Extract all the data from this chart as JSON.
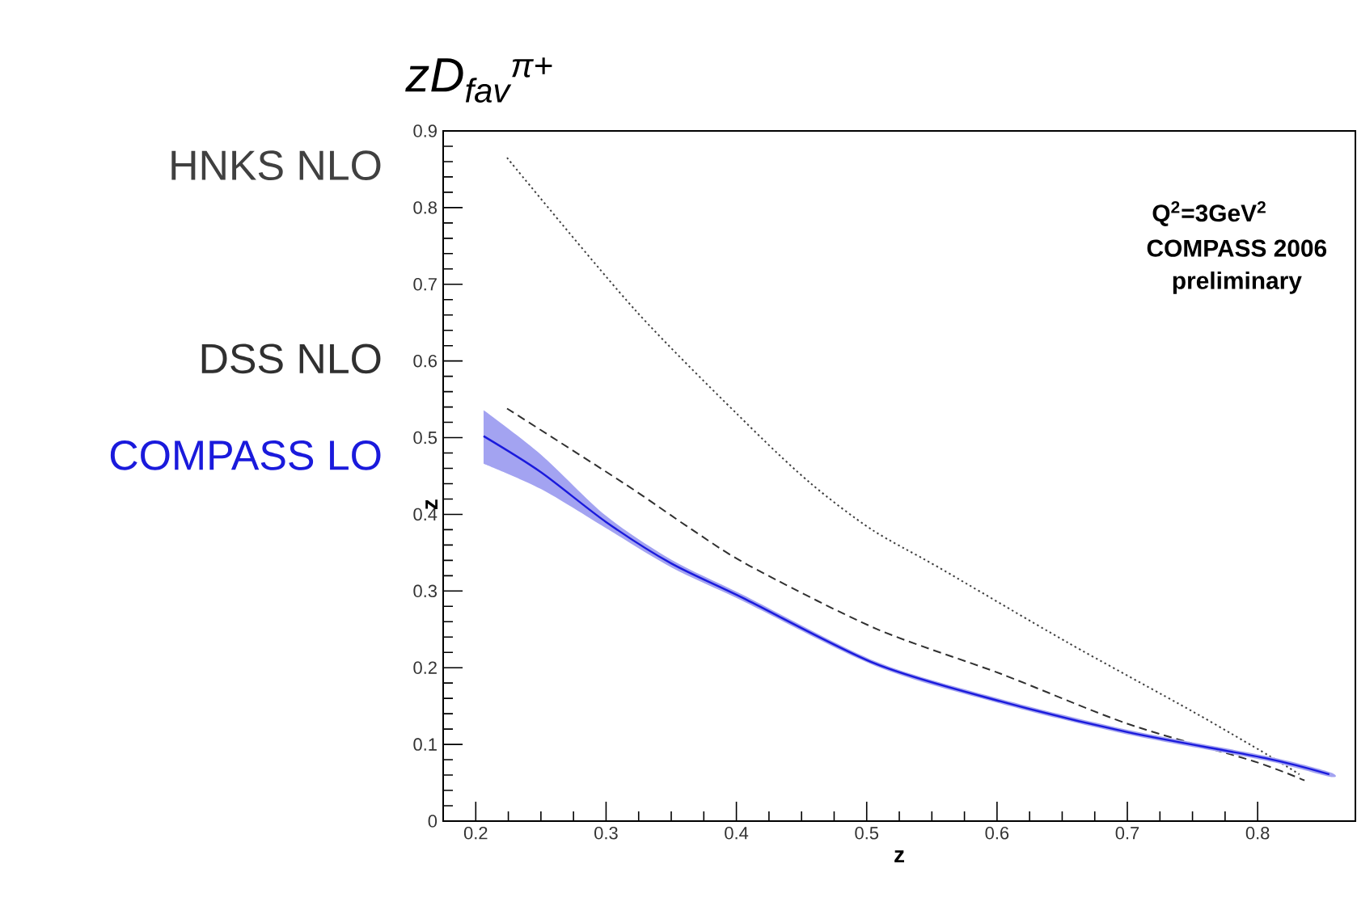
{
  "chart_data": {
    "type": "line",
    "title": "zD$_{fav}$$^{π+}$",
    "xlabel": "z",
    "ylabel": "z",
    "xlim": [
      0.175,
      0.875
    ],
    "ylim": [
      0,
      0.9
    ],
    "xticks": [
      0.2,
      0.3,
      0.4,
      0.5,
      0.6,
      0.7,
      0.8
    ],
    "yticks": [
      0,
      0.1,
      0.2,
      0.3,
      0.4,
      0.5,
      0.6,
      0.7,
      0.8,
      0.9
    ],
    "legend": false,
    "marker": "none",
    "grid": false,
    "annotations": [
      "Q$^{2}$=3GeV$^{2}$",
      "COMPASS 2006",
      "preliminary"
    ],
    "series": [
      {
        "name": "HNKS NLO",
        "color": "#404040",
        "line_style": "dotted",
        "x": [
          0.224,
          0.322,
          0.41,
          0.458,
          0.504,
          0.555,
          0.653,
          0.75,
          0.808,
          0.832
        ],
        "values": [
          0.865,
          0.667,
          0.515,
          0.439,
          0.38,
          0.331,
          0.234,
          0.143,
          0.086,
          0.061
        ]
      },
      {
        "name": "DSS NLO",
        "color": "#303030",
        "line_style": "dashed",
        "x": [
          0.224,
          0.315,
          0.366,
          0.41,
          0.507,
          0.603,
          0.7,
          0.797,
          0.836
        ],
        "values": [
          0.538,
          0.439,
          0.38,
          0.333,
          0.251,
          0.192,
          0.127,
          0.078,
          0.053
        ]
      },
      {
        "name": "COMPASS LO",
        "color": "#1a1adc",
        "line_style": "solid",
        "x": [
          0.206,
          0.25,
          0.3,
          0.35,
          0.405,
          0.507,
          0.603,
          0.7,
          0.806,
          0.855
        ],
        "values": [
          0.502,
          0.455,
          0.39,
          0.336,
          0.291,
          0.205,
          0.156,
          0.116,
          0.082,
          0.061
        ],
        "lower": [
          0.466,
          0.433,
          0.382,
          0.331,
          0.287,
          0.202,
          0.153,
          0.113,
          0.079,
          0.058
        ],
        "upper": [
          0.536,
          0.478,
          0.398,
          0.341,
          0.295,
          0.208,
          0.159,
          0.119,
          0.085,
          0.064
        ]
      }
    ]
  }
}
